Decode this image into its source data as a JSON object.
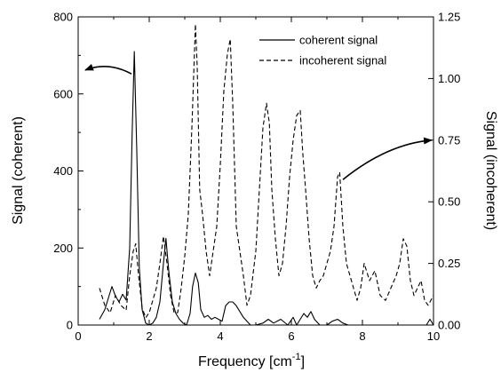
{
  "chart_data": {
    "type": "line",
    "title": "",
    "xlabel": "Frequency [cm",
    "xlabel_sup": "-1",
    "xlabel_suffix": "]",
    "ylabel_left": "Signal (coherent)",
    "ylabel_right": "Signal (incoherent)",
    "xlim": [
      0,
      10
    ],
    "ylim_left": [
      0,
      800
    ],
    "ylim_right": [
      0,
      1.25
    ],
    "xticks": [
      0,
      2,
      4,
      6,
      8,
      10
    ],
    "xtick_labels": [
      "0",
      "2",
      "4",
      "6",
      "8",
      "10"
    ],
    "yticks_left": [
      0,
      200,
      400,
      600,
      800
    ],
    "ytick_labels_left": [
      "0",
      "200",
      "400",
      "600",
      "800"
    ],
    "yticks_right": [
      0,
      0.25,
      0.5,
      0.75,
      1.0,
      1.25
    ],
    "ytick_labels_right": [
      "0.00",
      "0.25",
      "0.50",
      "0.75",
      "1.00",
      "1.25"
    ],
    "grid": false,
    "legend_position": "top-right",
    "series": [
      {
        "name": "coherent signal",
        "axis": "left",
        "style": "solid",
        "color": "#000000",
        "x": [
          0.6,
          0.75,
          0.85,
          0.95,
          1.05,
          1.15,
          1.25,
          1.35,
          1.45,
          1.52,
          1.58,
          1.65,
          1.72,
          1.8,
          1.9,
          2.0,
          2.1,
          2.2,
          2.3,
          2.4,
          2.47,
          2.55,
          2.65,
          2.75,
          2.85,
          2.95,
          3.05,
          3.15,
          3.22,
          3.3,
          3.38,
          3.45,
          3.55,
          3.65,
          3.75,
          3.85,
          3.95,
          4.05,
          4.15,
          4.25,
          4.35,
          4.45,
          4.55,
          4.65,
          4.75,
          4.85,
          5.0,
          5.2,
          5.35,
          5.5,
          5.7,
          5.9,
          6.05,
          6.15,
          6.25,
          6.35,
          6.45,
          6.55,
          6.65,
          6.8,
          7.0,
          7.15,
          7.3,
          7.45,
          7.6,
          7.8,
          8.0,
          8.2,
          8.4,
          8.6,
          8.8,
          9.0,
          9.2,
          9.4,
          9.6,
          9.8,
          9.9,
          10.0
        ],
        "y": [
          15,
          40,
          70,
          100,
          75,
          60,
          80,
          65,
          200,
          500,
          710,
          450,
          150,
          40,
          5,
          0,
          5,
          20,
          60,
          160,
          225,
          140,
          60,
          30,
          15,
          5,
          0,
          30,
          100,
          135,
          110,
          40,
          20,
          25,
          15,
          20,
          15,
          10,
          50,
          60,
          60,
          50,
          35,
          20,
          10,
          0,
          0,
          5,
          15,
          5,
          15,
          0,
          20,
          0,
          15,
          30,
          20,
          35,
          15,
          0,
          0,
          10,
          15,
          5,
          0,
          0,
          0,
          0,
          0,
          0,
          0,
          0,
          0,
          0,
          0,
          0,
          15,
          0
        ]
      },
      {
        "name": "incoherent signal",
        "axis": "right",
        "style": "dashed",
        "color": "#000000",
        "x": [
          0.6,
          0.75,
          0.9,
          1.05,
          1.2,
          1.35,
          1.45,
          1.55,
          1.62,
          1.7,
          1.8,
          1.9,
          2.0,
          2.1,
          2.2,
          2.3,
          2.4,
          2.5,
          2.6,
          2.7,
          2.8,
          2.9,
          3.0,
          3.1,
          3.2,
          3.3,
          3.35,
          3.42,
          3.5,
          3.6,
          3.7,
          3.8,
          3.9,
          4.0,
          4.1,
          4.2,
          4.28,
          4.35,
          4.45,
          4.55,
          4.65,
          4.75,
          4.85,
          5.0,
          5.1,
          5.2,
          5.3,
          5.38,
          5.45,
          5.55,
          5.65,
          5.75,
          5.85,
          5.95,
          6.05,
          6.15,
          6.25,
          6.32,
          6.4,
          6.5,
          6.6,
          6.7,
          6.8,
          6.9,
          7.0,
          7.1,
          7.2,
          7.3,
          7.36,
          7.45,
          7.55,
          7.65,
          7.75,
          7.85,
          7.95,
          8.05,
          8.2,
          8.35,
          8.5,
          8.65,
          8.8,
          8.95,
          9.05,
          9.15,
          9.25,
          9.35,
          9.45,
          9.55,
          9.65,
          9.75,
          9.85,
          10.0
        ],
        "y": [
          0.15,
          0.08,
          0.05,
          0.12,
          0.08,
          0.06,
          0.2,
          0.3,
          0.33,
          0.2,
          0.07,
          0.03,
          0.05,
          0.1,
          0.15,
          0.25,
          0.36,
          0.25,
          0.12,
          0.05,
          0.05,
          0.15,
          0.28,
          0.45,
          0.8,
          1.22,
          1.05,
          0.55,
          0.45,
          0.3,
          0.2,
          0.3,
          0.4,
          0.65,
          0.95,
          1.1,
          1.16,
          0.9,
          0.4,
          0.3,
          0.2,
          0.08,
          0.12,
          0.3,
          0.55,
          0.8,
          0.9,
          0.82,
          0.55,
          0.35,
          0.2,
          0.25,
          0.4,
          0.6,
          0.75,
          0.85,
          0.87,
          0.7,
          0.55,
          0.35,
          0.2,
          0.15,
          0.18,
          0.2,
          0.25,
          0.3,
          0.4,
          0.6,
          0.62,
          0.4,
          0.25,
          0.2,
          0.15,
          0.1,
          0.15,
          0.25,
          0.18,
          0.22,
          0.12,
          0.1,
          0.15,
          0.2,
          0.25,
          0.35,
          0.32,
          0.18,
          0.12,
          0.15,
          0.18,
          0.1,
          0.08,
          0.12
        ]
      }
    ],
    "annotations": [
      {
        "label": "arrow-to-left-axis",
        "from": [
          1.5,
          652
        ],
        "to": [
          0.2,
          662
        ],
        "axis": "left"
      },
      {
        "label": "arrow-to-right-axis",
        "from": [
          7.45,
          0.59
        ],
        "to": [
          9.95,
          0.75
        ],
        "axis": "right"
      }
    ]
  }
}
